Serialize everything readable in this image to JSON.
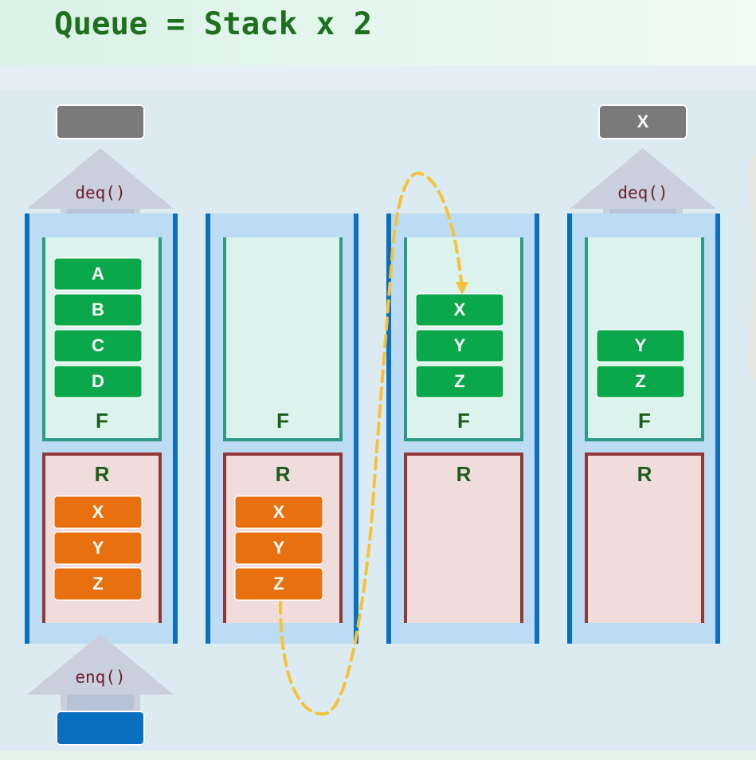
{
  "title": "Queue = Stack x 2",
  "labels": {
    "front": "F",
    "rear": "R",
    "deq": "deq()",
    "enq": "enq()"
  },
  "stages": [
    {
      "front": [
        "A",
        "B",
        "C",
        "D"
      ],
      "rear": [
        "X",
        "Y",
        "Z"
      ]
    },
    {
      "front": [],
      "rear": [
        "X",
        "Y",
        "Z"
      ]
    },
    {
      "front": [
        "X",
        "Y",
        "Z"
      ],
      "rear": []
    },
    {
      "front": [
        "Y",
        "Z"
      ],
      "rear": []
    }
  ],
  "dequeued": {
    "stage1": "",
    "stage4": "X"
  },
  "colors": {
    "front_item": "#0aa84a",
    "rear_item": "#e8700f",
    "column_border": "#0b6fc0",
    "transfer_arrow": "#f5c23a"
  }
}
